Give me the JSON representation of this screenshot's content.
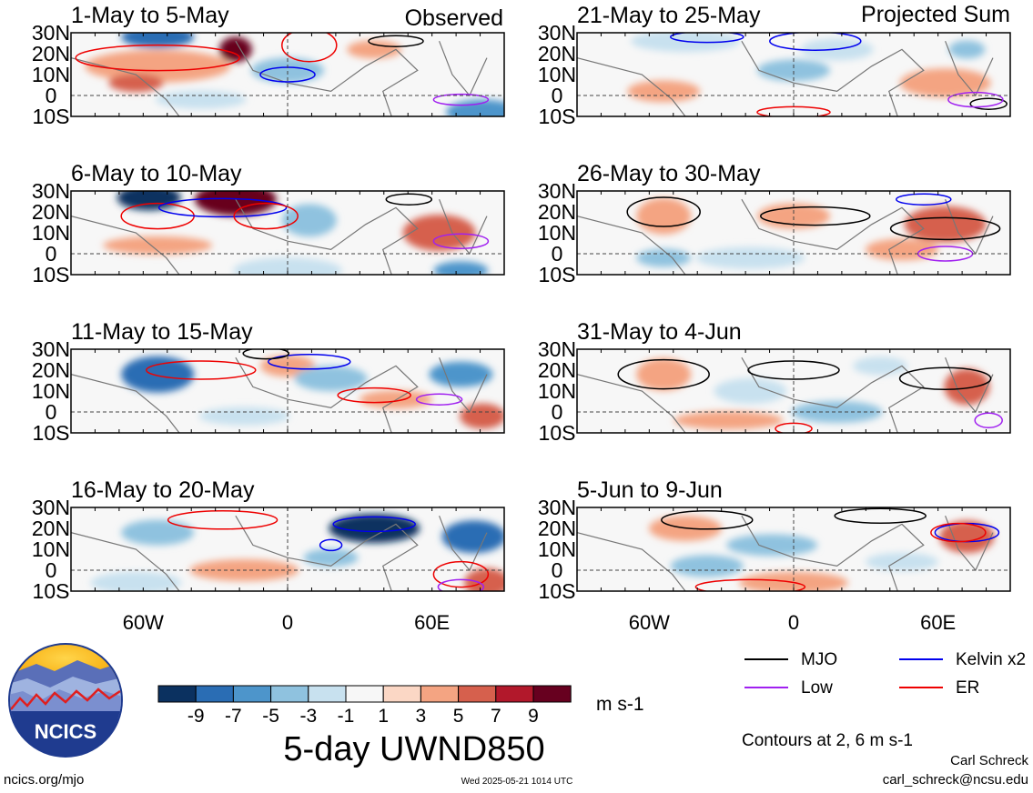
{
  "figure": {
    "title": "5-day UWND850",
    "units": "m s-1",
    "left_column_label": "Observed",
    "right_column_label": "Projected Sum",
    "contour_note": "Contours at 2, 6 m s-1",
    "author": "Carl Schreck",
    "email": "carl_schreck@ncsu.edu",
    "site": "ncics.org/mjo",
    "timestamp": "Wed 2025-05-21 1014 UTC",
    "logo_text": "NCICS"
  },
  "axes": {
    "lat_ticks": [
      "30N",
      "20N",
      "10N",
      "0",
      "10S"
    ],
    "lon_ticks": [
      "60W",
      "0",
      "60E"
    ]
  },
  "colorbar": {
    "labels": [
      "-9",
      "-7",
      "-5",
      "-3",
      "-1",
      "1",
      "3",
      "5",
      "7",
      "9"
    ],
    "colors": [
      "#0b3160",
      "#2a6db4",
      "#4d95cb",
      "#8fc2df",
      "#c8e1ef",
      "#f7f7f7",
      "#fbd7c5",
      "#f4a482",
      "#d6604d",
      "#b2182b",
      "#67001f"
    ]
  },
  "legend": [
    {
      "label": "MJO",
      "color": "#000000"
    },
    {
      "label": "Kelvin x2",
      "color": "#0000ee"
    },
    {
      "label": "Low",
      "color": "#a020f0"
    },
    {
      "label": "ER",
      "color": "#ee0000"
    }
  ],
  "chart_data": {
    "type": "heatmap",
    "variable": "5-day UWND850",
    "units": "m s-1",
    "contour_levels": [
      2,
      6
    ],
    "lat_range": [
      -10,
      30
    ],
    "lon_range": [
      -90,
      90
    ],
    "panels": [
      {
        "label": "1-May to 5-May",
        "group": "Observed"
      },
      {
        "label": "6-May to 10-May",
        "group": "Observed"
      },
      {
        "label": "11-May to 15-May",
        "group": "Observed"
      },
      {
        "label": "16-May to 20-May",
        "group": "Observed"
      },
      {
        "label": "21-May to 25-May",
        "group": "Projected Sum"
      },
      {
        "label": "26-May to 30-May",
        "group": "Projected Sum"
      },
      {
        "label": "31-May to 4-Jun",
        "group": "Projected Sum"
      },
      {
        "label": "5-Jun to 9-Jun",
        "group": "Projected Sum"
      }
    ]
  }
}
